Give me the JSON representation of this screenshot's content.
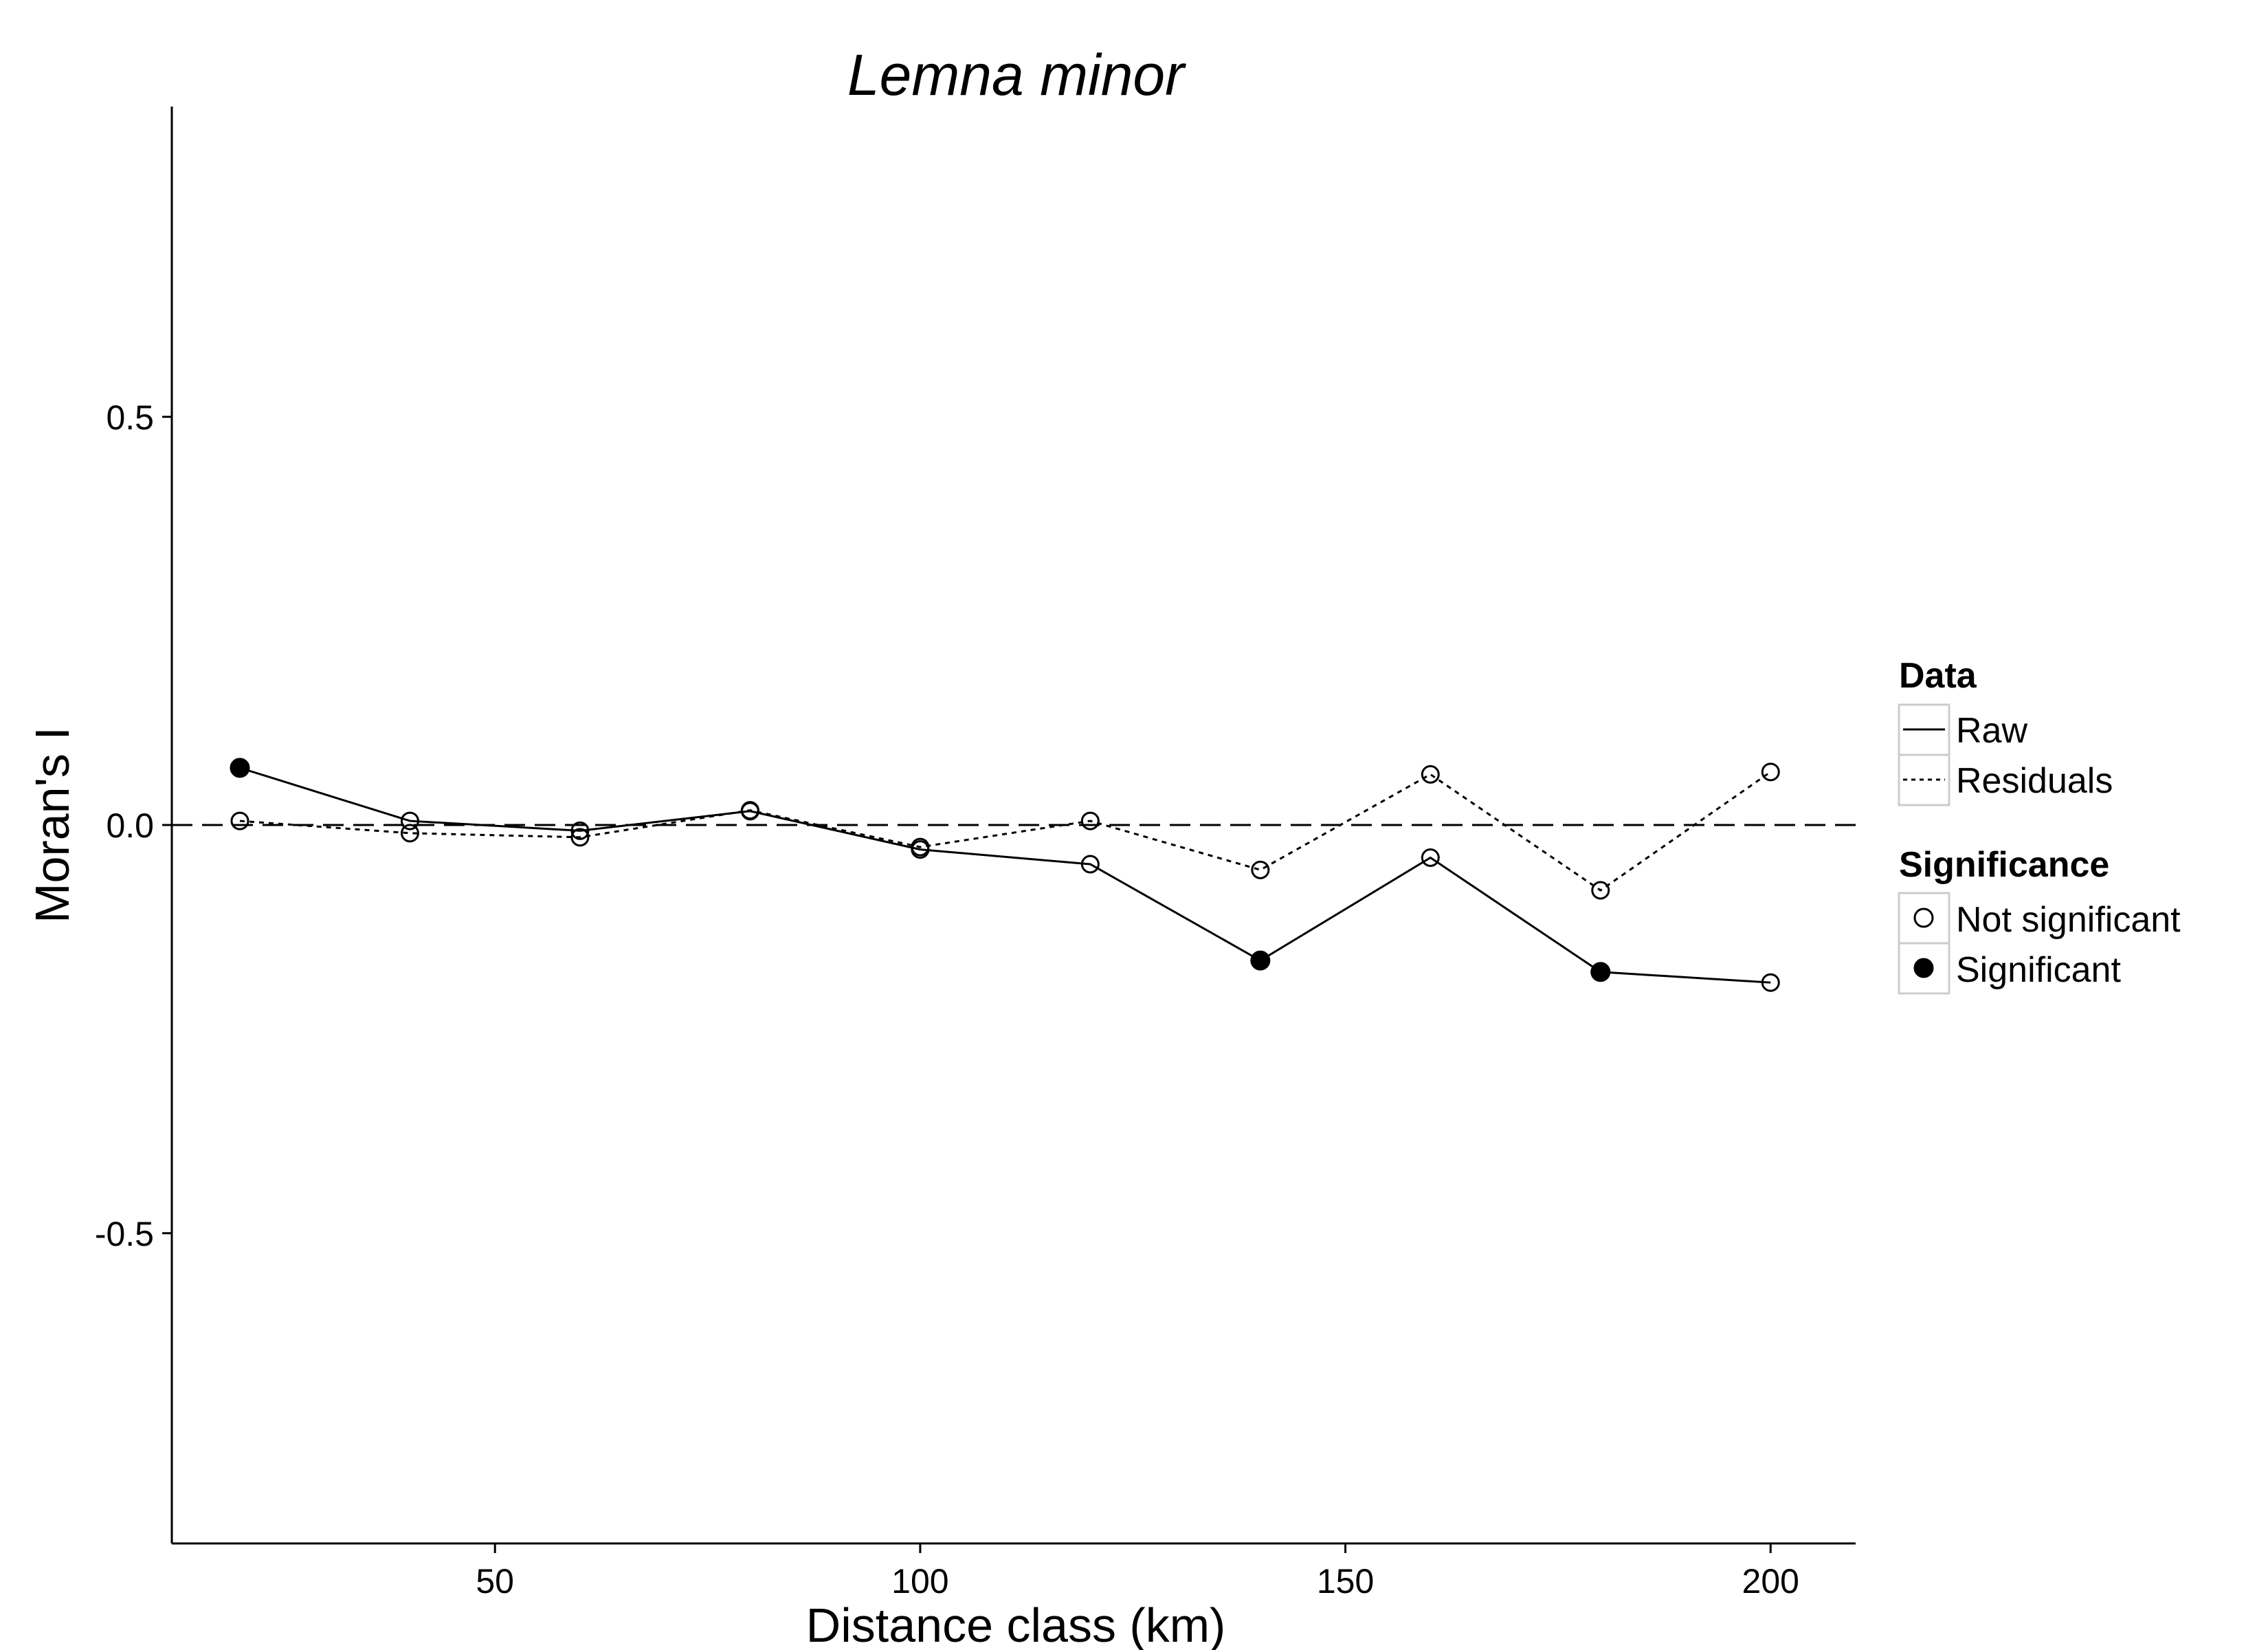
{
  "chart_data": {
    "type": "line",
    "title": "Lemna minor",
    "xlabel": "Distance class (km)",
    "ylabel": "Moran's I",
    "xlim": [
      12,
      210
    ],
    "ylim": [
      -0.88,
      0.88
    ],
    "x_ticks": [
      50,
      100,
      150,
      200
    ],
    "x_tick_labels": [
      "50",
      "100",
      "150",
      "200"
    ],
    "y_ticks": [
      -0.5,
      0.0,
      0.5
    ],
    "y_tick_labels": [
      "-0.5",
      "0.0",
      "0.5"
    ],
    "reference_line": {
      "y": 0,
      "style": "dashed"
    },
    "grid": false,
    "legend_position": "right",
    "x": [
      20,
      40,
      60,
      80,
      100,
      120,
      140,
      160,
      180,
      200
    ],
    "series": [
      {
        "name": "Raw",
        "line_style": "solid",
        "values": [
          0.07,
          0.005,
          -0.007,
          0.017,
          -0.03,
          -0.048,
          -0.166,
          -0.04,
          -0.18,
          -0.193
        ],
        "significant": [
          true,
          false,
          false,
          false,
          false,
          false,
          true,
          false,
          true,
          false
        ]
      },
      {
        "name": "Residuals",
        "line_style": "dotted",
        "values": [
          0.005,
          -0.01,
          -0.015,
          0.018,
          -0.027,
          0.005,
          -0.055,
          0.062,
          -0.08,
          0.065
        ],
        "significant": [
          false,
          false,
          false,
          false,
          false,
          false,
          false,
          false,
          false,
          false
        ]
      }
    ],
    "legend": {
      "data_title": "Data",
      "data_items": [
        "Raw",
        "Residuals"
      ],
      "significance_title": "Significance",
      "significance_items": [
        "Not significant",
        "Significant"
      ]
    }
  }
}
